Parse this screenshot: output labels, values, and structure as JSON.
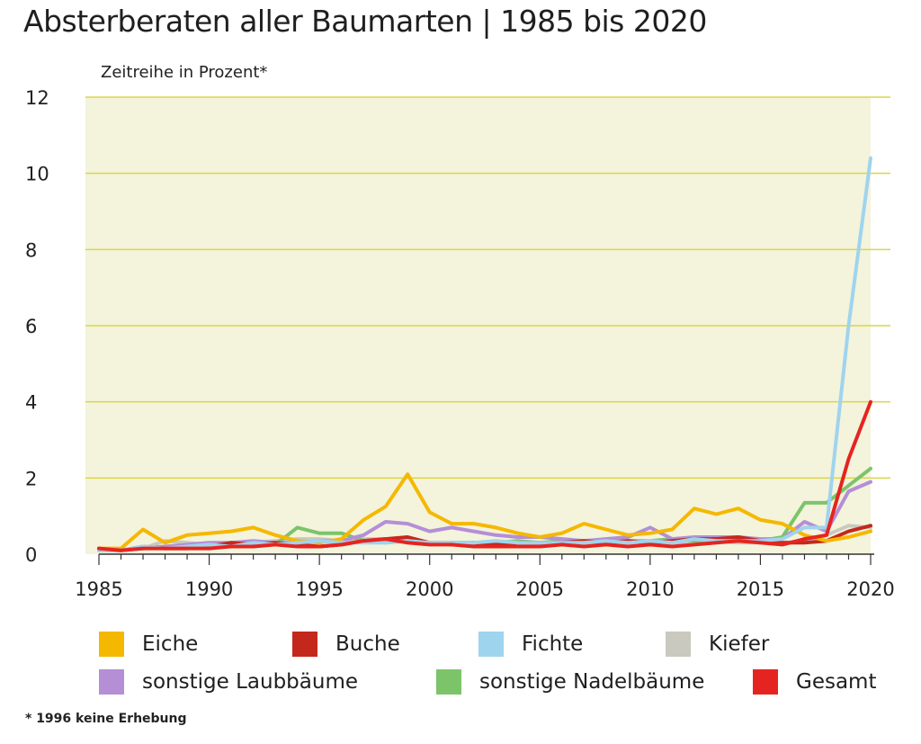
{
  "chart_data": {
    "type": "line",
    "title": "Absterberaten aller Baumarten | 1985 bis 2020",
    "ylabel": "Zeitreihe in Prozent*",
    "xlabel": "",
    "ylim": [
      0,
      12
    ],
    "yticks": [
      "0",
      "2",
      "4",
      "6",
      "8",
      "10",
      "12"
    ],
    "xticks": [
      "1985",
      "1990",
      "1995",
      "2000",
      "2005",
      "2010",
      "2015",
      "2020"
    ],
    "xlim": [
      1985,
      2020
    ],
    "grid": "horizontal",
    "legend_position": "bottom",
    "x": [
      1985,
      1986,
      1987,
      1988,
      1989,
      1990,
      1991,
      1992,
      1993,
      1994,
      1995,
      1996,
      1997,
      1998,
      1999,
      2000,
      2001,
      2002,
      2003,
      2004,
      2005,
      2006,
      2007,
      2008,
      2009,
      2010,
      2011,
      2012,
      2013,
      2014,
      2015,
      2016,
      2017,
      2018,
      2019,
      2020
    ],
    "series": [
      {
        "name": "Eiche",
        "color": "#f5b800",
        "values": [
          0.15,
          0.15,
          0.65,
          0.3,
          0.5,
          0.55,
          0.6,
          0.7,
          0.5,
          0.35,
          0.3,
          0.4,
          0.9,
          1.25,
          2.1,
          1.1,
          0.8,
          0.8,
          0.7,
          0.55,
          0.45,
          0.55,
          0.8,
          0.65,
          0.5,
          0.55,
          0.65,
          1.2,
          1.05,
          1.2,
          0.9,
          0.8,
          0.5,
          0.35,
          0.45,
          0.6
        ]
      },
      {
        "name": "Buche",
        "color": "#c4281c",
        "values": [
          0.15,
          0.1,
          0.2,
          0.15,
          0.15,
          0.2,
          0.3,
          0.25,
          0.3,
          0.25,
          0.2,
          0.25,
          0.35,
          0.4,
          0.45,
          0.3,
          0.25,
          0.3,
          0.25,
          0.3,
          0.3,
          0.3,
          0.35,
          0.3,
          0.35,
          0.3,
          0.35,
          0.4,
          0.4,
          0.45,
          0.35,
          0.3,
          0.3,
          0.35,
          0.6,
          0.75
        ]
      },
      {
        "name": "Fichte",
        "color": "#9fd4ee",
        "values": [
          0.1,
          0.1,
          0.2,
          0.15,
          0.2,
          0.25,
          0.2,
          0.3,
          0.25,
          0.3,
          0.35,
          0.3,
          0.3,
          0.3,
          0.35,
          0.3,
          0.3,
          0.3,
          0.35,
          0.3,
          0.3,
          0.3,
          0.3,
          0.35,
          0.3,
          0.35,
          0.3,
          0.4,
          0.35,
          0.35,
          0.35,
          0.4,
          0.7,
          0.7,
          6.0,
          10.4
        ]
      },
      {
        "name": "Kiefer",
        "color": "#c9c9bf",
        "values": [
          0.1,
          0.1,
          0.15,
          0.35,
          0.3,
          0.25,
          0.3,
          0.3,
          0.35,
          0.4,
          0.4,
          0.35,
          0.4,
          0.4,
          0.35,
          0.3,
          0.3,
          0.3,
          0.3,
          0.3,
          0.25,
          0.3,
          0.3,
          0.3,
          0.3,
          0.3,
          0.3,
          0.3,
          0.35,
          0.3,
          0.3,
          0.3,
          0.35,
          0.5,
          0.75,
          0.7
        ]
      },
      {
        "name": "sonstige Laubbäume",
        "color": "#b48fd6",
        "values": [
          0.15,
          0.1,
          0.15,
          0.2,
          0.25,
          0.3,
          0.3,
          0.35,
          0.3,
          0.3,
          0.35,
          0.35,
          0.5,
          0.85,
          0.8,
          0.6,
          0.7,
          0.6,
          0.5,
          0.45,
          0.45,
          0.4,
          0.35,
          0.4,
          0.45,
          0.7,
          0.4,
          0.45,
          0.45,
          0.45,
          0.4,
          0.4,
          0.85,
          0.6,
          1.65,
          1.9
        ]
      },
      {
        "name": "sonstige Nadelbäume",
        "color": "#7cc46a",
        "values": [
          0.1,
          0.1,
          0.15,
          0.2,
          0.2,
          0.25,
          0.3,
          0.3,
          0.25,
          0.7,
          0.55,
          0.55,
          0.35,
          0.3,
          0.35,
          0.3,
          0.3,
          0.3,
          0.3,
          0.35,
          0.3,
          0.35,
          0.3,
          0.35,
          0.35,
          0.35,
          0.4,
          0.35,
          0.35,
          0.4,
          0.35,
          0.45,
          1.35,
          1.35,
          1.8,
          2.25
        ]
      },
      {
        "name": "Gesamt",
        "color": "#e52421",
        "values": [
          0.15,
          0.1,
          0.15,
          0.15,
          0.15,
          0.15,
          0.2,
          0.2,
          0.25,
          0.2,
          0.2,
          0.25,
          0.35,
          0.4,
          0.3,
          0.25,
          0.25,
          0.2,
          0.2,
          0.2,
          0.2,
          0.25,
          0.2,
          0.25,
          0.2,
          0.25,
          0.2,
          0.25,
          0.3,
          0.35,
          0.3,
          0.25,
          0.4,
          0.5,
          2.5,
          4.0
        ]
      }
    ],
    "legend": [
      {
        "label": "Eiche",
        "color": "#f5b800"
      },
      {
        "label": "Buche",
        "color": "#c4281c"
      },
      {
        "label": "Fichte",
        "color": "#9fd4ee"
      },
      {
        "label": "Kiefer",
        "color": "#c9c9bf"
      },
      {
        "label": "sonstige Laubbäume",
        "color": "#b48fd6"
      },
      {
        "label": "sonstige Nadelbäume",
        "color": "#7cc46a"
      },
      {
        "label": "Gesamt",
        "color": "#e52421"
      }
    ],
    "footnote": "* 1996 keine Erhebung",
    "colors": {
      "plot_background": "#f4f3dc",
      "gridline": "#d8d64a",
      "axis": "#333333"
    }
  }
}
